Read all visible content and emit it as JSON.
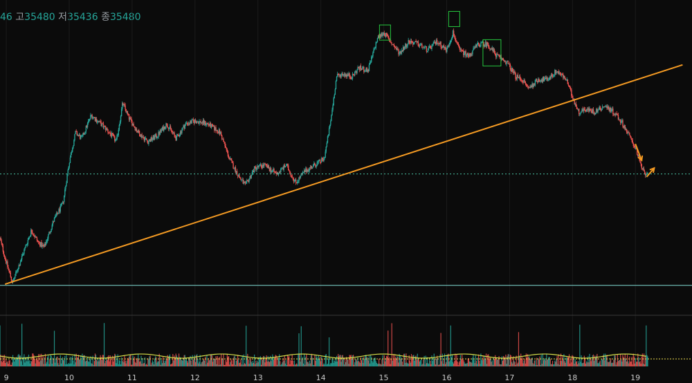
{
  "header": {
    "open_value": "46",
    "high_label": "고",
    "high_value": "35480",
    "low_label": "저",
    "low_value": "35436",
    "close_label": "종",
    "close_value": "35480"
  },
  "chart_data": {
    "type": "candlestick",
    "x_ticks": [
      "9",
      "10",
      "11",
      "12",
      "13",
      "14",
      "15",
      "16",
      "17",
      "18",
      "19"
    ],
    "x_range": [
      8.9,
      19.9
    ],
    "y_range": [
      30700,
      36000
    ],
    "price_path": [
      [
        8.9,
        31950
      ],
      [
        9.0,
        31550
      ],
      [
        9.1,
        31200
      ],
      [
        9.25,
        31650
      ],
      [
        9.4,
        32100
      ],
      [
        9.5,
        31900
      ],
      [
        9.6,
        31800
      ],
      [
        9.75,
        32250
      ],
      [
        9.9,
        32550
      ],
      [
        10.0,
        33250
      ],
      [
        10.1,
        33750
      ],
      [
        10.2,
        33650
      ],
      [
        10.35,
        34050
      ],
      [
        10.5,
        33900
      ],
      [
        10.6,
        33800
      ],
      [
        10.75,
        33600
      ],
      [
        10.85,
        34250
      ],
      [
        10.95,
        34000
      ],
      [
        11.1,
        33750
      ],
      [
        11.25,
        33600
      ],
      [
        11.4,
        33700
      ],
      [
        11.55,
        33900
      ],
      [
        11.7,
        33650
      ],
      [
        11.85,
        33900
      ],
      [
        12.0,
        33950
      ],
      [
        12.2,
        33900
      ],
      [
        12.4,
        33750
      ],
      [
        12.55,
        33300
      ],
      [
        12.7,
        33000
      ],
      [
        12.8,
        32850
      ],
      [
        12.95,
        33150
      ],
      [
        13.1,
        33200
      ],
      [
        13.3,
        33050
      ],
      [
        13.45,
        33200
      ],
      [
        13.6,
        32900
      ],
      [
        13.75,
        33100
      ],
      [
        13.9,
        33200
      ],
      [
        14.05,
        33300
      ],
      [
        14.15,
        33900
      ],
      [
        14.25,
        34700
      ],
      [
        14.35,
        34750
      ],
      [
        14.5,
        34700
      ],
      [
        14.6,
        34850
      ],
      [
        14.75,
        34800
      ],
      [
        14.9,
        35350
      ],
      [
        15.0,
        35450
      ],
      [
        15.1,
        35300
      ],
      [
        15.25,
        35100
      ],
      [
        15.4,
        35300
      ],
      [
        15.55,
        35250
      ],
      [
        15.7,
        35150
      ],
      [
        15.85,
        35300
      ],
      [
        16.0,
        35150
      ],
      [
        16.1,
        35450
      ],
      [
        16.2,
        35150
      ],
      [
        16.35,
        35050
      ],
      [
        16.5,
        35250
      ],
      [
        16.65,
        35250
      ],
      [
        16.8,
        35050
      ],
      [
        16.95,
        34950
      ],
      [
        17.1,
        34700
      ],
      [
        17.2,
        34650
      ],
      [
        17.3,
        34500
      ],
      [
        17.45,
        34650
      ],
      [
        17.6,
        34650
      ],
      [
        17.75,
        34800
      ],
      [
        17.9,
        34650
      ],
      [
        18.0,
        34350
      ],
      [
        18.1,
        34100
      ],
      [
        18.2,
        34150
      ],
      [
        18.35,
        34100
      ],
      [
        18.5,
        34200
      ],
      [
        18.6,
        34150
      ],
      [
        18.7,
        34050
      ],
      [
        18.8,
        33900
      ],
      [
        18.9,
        33700
      ],
      [
        19.0,
        33500
      ],
      [
        19.1,
        33150
      ],
      [
        19.15,
        33050
      ],
      [
        19.2,
        33080
      ]
    ],
    "swing_highs": [
      {
        "x": 15.02,
        "high": 35530
      },
      {
        "x": 16.12,
        "high": 35760
      },
      {
        "x": 16.72,
        "high": 35280
      }
    ],
    "trend_line": {
      "from": [
        8.98,
        31180
      ],
      "to": [
        19.75,
        34900
      ]
    },
    "horizontal_lines": [
      {
        "y": 33050,
        "style": "dotted",
        "color": "#4cc3a4"
      },
      {
        "y": 31160,
        "style": "solid",
        "color": "#7fd9d2"
      }
    ],
    "arrows": [
      {
        "from": [
          19.0,
          33560
        ],
        "to": [
          19.1,
          33280
        ]
      },
      {
        "from": [
          19.18,
          33000
        ],
        "to": [
          19.3,
          33150
        ]
      }
    ],
    "volume": {
      "avg_level": 0.22,
      "baseline_level": 0.16
    },
    "colors": {
      "background": "#0b0b0b",
      "up": "#26a69a",
      "down": "#ef5350",
      "trend_line": "#f59b23",
      "swing_box": "#27c93f",
      "volume_avg": "#d8e24b",
      "volume_dotted": "#f0e050",
      "axis_text": "#c8c8c8"
    }
  }
}
